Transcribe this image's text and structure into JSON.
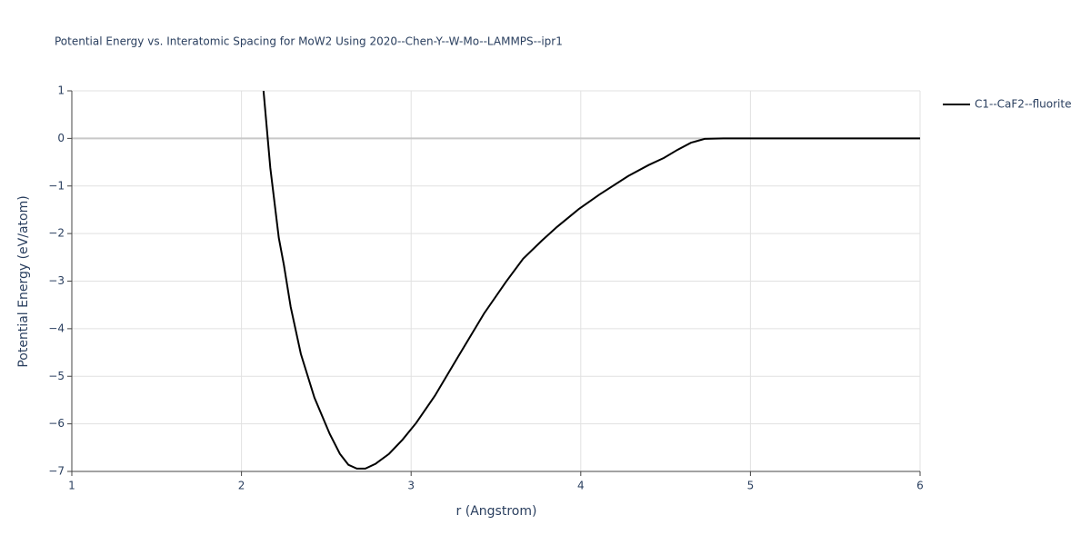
{
  "chart_data": {
    "type": "line",
    "title": "Potential Energy vs. Interatomic Spacing for MoW2 Using 2020--Chen-Y--W-Mo--LAMMPS--ipr1",
    "xlabel": "r (Angstrom)",
    "ylabel": "Potential Energy (eV/atom)",
    "x": [
      2.13,
      2.17,
      2.22,
      2.25,
      2.29,
      2.35,
      2.43,
      2.52,
      2.58,
      2.63,
      2.68,
      2.73,
      2.79,
      2.87,
      2.95,
      3.03,
      3.14,
      3.27,
      3.43,
      3.56,
      3.66,
      3.77,
      3.86,
      3.99,
      4.11,
      4.28,
      4.4,
      4.49,
      4.57,
      4.65,
      4.73,
      4.84,
      6
    ],
    "series": [
      {
        "name": "C1--CaF2--fluorite",
        "color": "#000000",
        "values": [
          1,
          -0.62,
          -2.09,
          -2.66,
          -3.54,
          -4.53,
          -5.45,
          -6.21,
          -6.63,
          -6.86,
          -6.94,
          -6.94,
          -6.84,
          -6.63,
          -6.33,
          -5.98,
          -5.41,
          -4.63,
          -3.68,
          -3.01,
          -2.53,
          -2.15,
          -1.86,
          -1.48,
          -1.18,
          -0.79,
          -0.56,
          -0.41,
          -0.24,
          -0.09,
          -0.01,
          0,
          0
        ]
      }
    ],
    "xlim": [
      1,
      6
    ],
    "xticks": [
      1,
      2,
      3,
      4,
      5,
      6
    ],
    "ylim": [
      -7,
      1
    ],
    "yticks": [
      {
        "value": -7,
        "label": "−7"
      },
      {
        "value": -6,
        "label": "−6"
      },
      {
        "value": -5,
        "label": "−5"
      },
      {
        "value": -4,
        "label": "−4"
      },
      {
        "value": -3,
        "label": "−3"
      },
      {
        "value": -2,
        "label": "−2"
      },
      {
        "value": -1,
        "label": "−1"
      },
      0,
      1
    ],
    "grid": true,
    "legend": "right"
  }
}
